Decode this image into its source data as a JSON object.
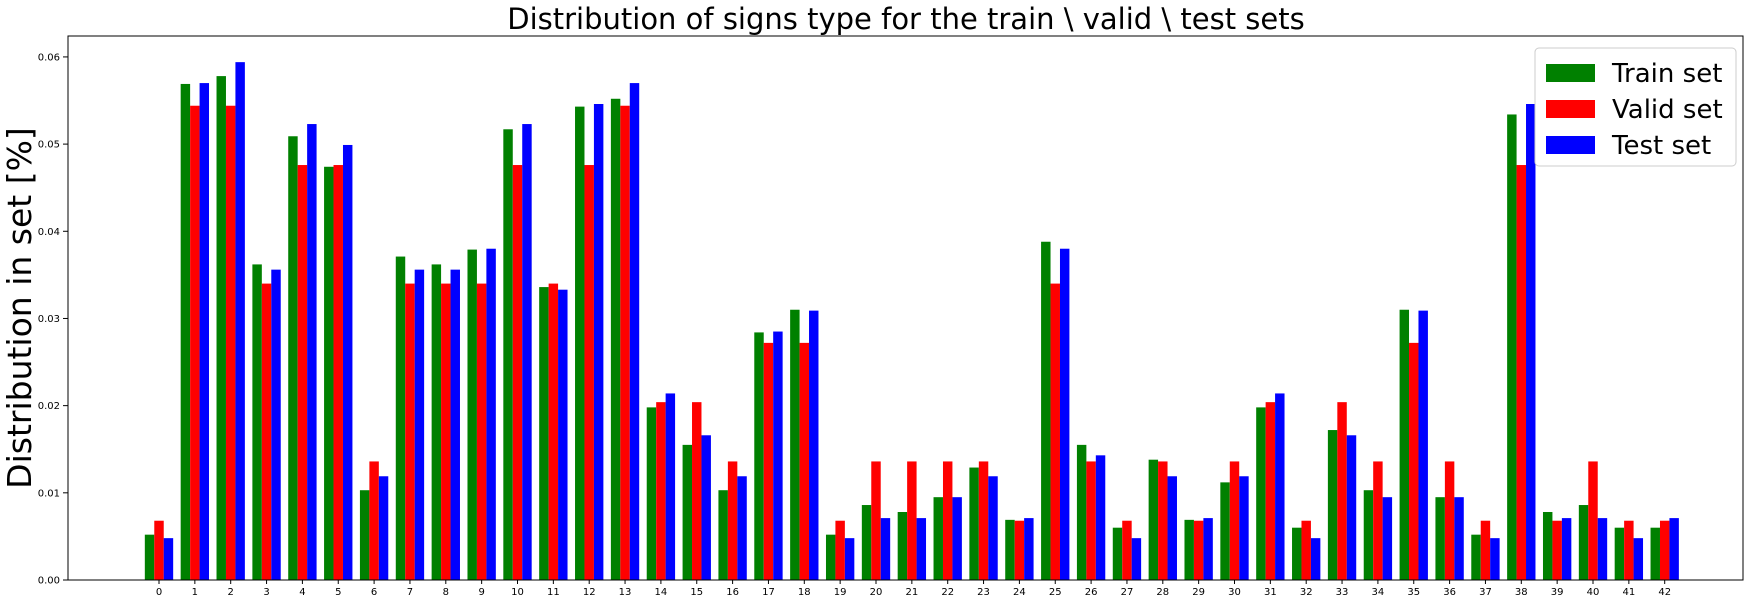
{
  "chart_data": {
    "type": "bar",
    "title": "Distribution of signs type for the train \\ valid \\ test sets",
    "xlabel": "",
    "ylabel": "Distribution in set [%]",
    "ylim": [
      0,
      0.0624
    ],
    "yticks": [
      "0.00",
      "0.01",
      "0.02",
      "0.03",
      "0.04",
      "0.05",
      "0.06"
    ],
    "categories": [
      "0",
      "1",
      "2",
      "3",
      "4",
      "5",
      "6",
      "7",
      "8",
      "9",
      "10",
      "11",
      "12",
      "13",
      "14",
      "15",
      "16",
      "17",
      "18",
      "19",
      "20",
      "21",
      "22",
      "23",
      "24",
      "25",
      "26",
      "27",
      "28",
      "29",
      "30",
      "31",
      "32",
      "33",
      "34",
      "35",
      "36",
      "37",
      "38",
      "39",
      "40",
      "41",
      "42"
    ],
    "series": [
      {
        "name": "Train set",
        "color": "#008000",
        "values": [
          0.0052,
          0.0569,
          0.0578,
          0.0362,
          0.0509,
          0.0474,
          0.0103,
          0.0371,
          0.0362,
          0.0379,
          0.0517,
          0.0336,
          0.0543,
          0.0552,
          0.0198,
          0.0155,
          0.0103,
          0.0284,
          0.031,
          0.0052,
          0.0086,
          0.0078,
          0.0095,
          0.0129,
          0.0069,
          0.0388,
          0.0155,
          0.006,
          0.0138,
          0.0069,
          0.0112,
          0.0198,
          0.006,
          0.0172,
          0.0103,
          0.031,
          0.0095,
          0.0052,
          0.0534,
          0.0078,
          0.0086,
          0.006,
          0.006
        ]
      },
      {
        "name": "Valid set",
        "color": "#ff0000",
        "values": [
          0.0068,
          0.0544,
          0.0544,
          0.034,
          0.0476,
          0.0476,
          0.0136,
          0.034,
          0.034,
          0.034,
          0.0476,
          0.034,
          0.0476,
          0.0544,
          0.0204,
          0.0204,
          0.0136,
          0.0272,
          0.0272,
          0.0068,
          0.0136,
          0.0136,
          0.0136,
          0.0136,
          0.0068,
          0.034,
          0.0136,
          0.0068,
          0.0136,
          0.0068,
          0.0136,
          0.0204,
          0.0068,
          0.0204,
          0.0136,
          0.0272,
          0.0136,
          0.0068,
          0.0476,
          0.0068,
          0.0136,
          0.0068,
          0.0068
        ]
      },
      {
        "name": "Test set",
        "color": "#0000ff",
        "values": [
          0.0048,
          0.057,
          0.0594,
          0.0356,
          0.0523,
          0.0499,
          0.0119,
          0.0356,
          0.0356,
          0.038,
          0.0523,
          0.0333,
          0.0546,
          0.057,
          0.0214,
          0.0166,
          0.0119,
          0.0285,
          0.0309,
          0.0048,
          0.0071,
          0.0071,
          0.0095,
          0.0119,
          0.0071,
          0.038,
          0.0143,
          0.0048,
          0.0119,
          0.0071,
          0.0119,
          0.0214,
          0.0048,
          0.0166,
          0.0095,
          0.0309,
          0.0095,
          0.0048,
          0.0546,
          0.0071,
          0.0071,
          0.0048,
          0.0071
        ]
      }
    ],
    "legend": "top-right",
    "grid": false
  }
}
